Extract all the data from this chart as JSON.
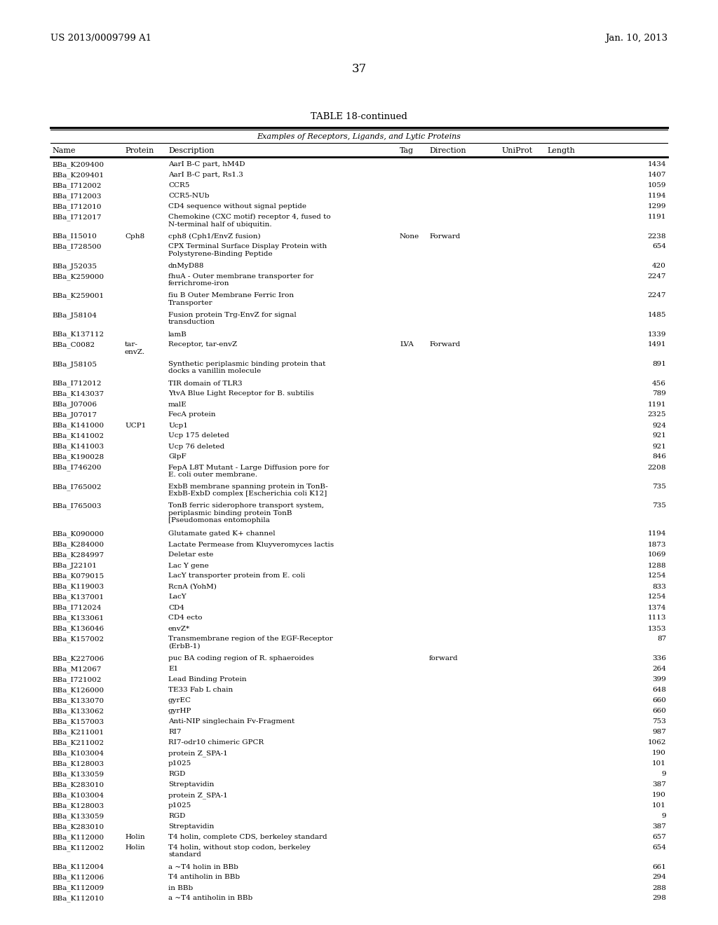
{
  "header_left": "US 2013/0009799 A1",
  "header_right": "Jan. 10, 2013",
  "page_number": "37",
  "table_title": "TABLE 18-continued",
  "table_subtitle": "Examples of Receptors, Ligands, and Lytic Proteins",
  "col_headers": [
    "Name",
    "Protein",
    "Description",
    "Tag",
    "Direction",
    "UniProt",
    "Length"
  ],
  "rows": [
    [
      "BBa_K209400",
      "",
      "AarI B-C part, hM4D",
      "",
      "",
      "",
      "1434"
    ],
    [
      "BBa_K209401",
      "",
      "AarI B-C part, Rs1.3",
      "",
      "",
      "",
      "1407"
    ],
    [
      "BBa_I712002",
      "",
      "CCR5",
      "",
      "",
      "",
      "1059"
    ],
    [
      "BBa_I712003",
      "",
      "CCR5-NUb",
      "",
      "",
      "",
      "1194"
    ],
    [
      "BBa_I712010",
      "",
      "CD4 sequence without signal peptide",
      "",
      "",
      "",
      "1299"
    ],
    [
      "BBa_I712017",
      "",
      "Chemokine (CXC motif) receptor 4, fused to\nN-terminal half of ubiquitin.",
      "",
      "",
      "",
      "1191"
    ],
    [
      "BBa_I15010",
      "Cph8",
      "cph8 (Cph1/EnvZ fusion)",
      "None",
      "Forward",
      "",
      "2238"
    ],
    [
      "BBa_I728500",
      "",
      "CPX Terminal Surface Display Protein with\nPolystyrene-Binding Peptide",
      "",
      "",
      "",
      "654"
    ],
    [
      "BBa_J52035",
      "",
      "dnMyD88",
      "",
      "",
      "",
      "420"
    ],
    [
      "BBa_K259000",
      "",
      "fhuA - Outer membrane transporter for\nferrichrome-iron",
      "",
      "",
      "",
      "2247"
    ],
    [
      "BBa_K259001",
      "",
      "fiu B Outer Membrane Ferric Iron\nTransporter",
      "",
      "",
      "",
      "2247"
    ],
    [
      "BBa_J58104",
      "",
      "Fusion protein Trg-EnvZ for signal\ntransduction",
      "",
      "",
      "",
      "1485"
    ],
    [
      "BBa_K137112",
      "",
      "lamB",
      "",
      "",
      "",
      "1339"
    ],
    [
      "BBa_C0082",
      "tar-\nenvZ.",
      "Receptor, tar-envZ",
      "LVA",
      "Forward",
      "",
      "1491"
    ],
    [
      "BBa_J58105",
      "",
      "Synthetic periplasmic binding protein that\ndocks a vanillin molecule",
      "",
      "",
      "",
      "891"
    ],
    [
      "BBa_I712012",
      "",
      "TIR domain of TLR3",
      "",
      "",
      "",
      "456"
    ],
    [
      "BBa_K143037",
      "",
      "YtvA Blue Light Receptor for B. subtilis",
      "",
      "",
      "",
      "789"
    ],
    [
      "BBa_J07006",
      "",
      "malE",
      "",
      "",
      "",
      "1191"
    ],
    [
      "BBa_J07017",
      "",
      "FecA protein",
      "",
      "",
      "",
      "2325"
    ],
    [
      "BBa_K141000",
      "UCP1",
      "Ucp1",
      "",
      "",
      "",
      "924"
    ],
    [
      "BBa_K141002",
      "",
      "Ucp 175 deleted",
      "",
      "",
      "",
      "921"
    ],
    [
      "BBa_K141003",
      "",
      "Ucp 76 deleted",
      "",
      "",
      "",
      "921"
    ],
    [
      "BBa_K190028",
      "",
      "GlpF",
      "",
      "",
      "",
      "846"
    ],
    [
      "BBa_I746200",
      "",
      "FepA L8T Mutant - Large Diffusion pore for\nE. coli outer membrane.",
      "",
      "",
      "",
      "2208"
    ],
    [
      "BBa_I765002",
      "",
      "ExbB membrane spanning protein in TonB-\nExbB-ExbD complex [Escherichia coli K12]",
      "",
      "",
      "",
      "735"
    ],
    [
      "BBa_I765003",
      "",
      "TonB ferric siderophore transport system,\nperiplasmic binding protein TonB\n[Pseudomonas entomophila",
      "",
      "",
      "",
      "735"
    ],
    [
      "BBa_K090000",
      "",
      "Glutamate gated K+ channel",
      "",
      "",
      "",
      "1194"
    ],
    [
      "BBa_K284000",
      "",
      "Lactate Permease from Kluyveromyces lactis",
      "",
      "",
      "",
      "1873"
    ],
    [
      "BBa_K284997",
      "",
      "Deletar este",
      "",
      "",
      "",
      "1069"
    ],
    [
      "BBa_J22101",
      "",
      "Lac Y gene",
      "",
      "",
      "",
      "1288"
    ],
    [
      "BBa_K079015",
      "",
      "LacY transporter protein from E. coli",
      "",
      "",
      "",
      "1254"
    ],
    [
      "BBa_K119003",
      "",
      "RcnA (YohM)",
      "",
      "",
      "",
      "833"
    ],
    [
      "BBa_K137001",
      "",
      "LacY",
      "",
      "",
      "",
      "1254"
    ],
    [
      "BBa_I712024",
      "",
      "CD4",
      "",
      "",
      "",
      "1374"
    ],
    [
      "BBa_K133061",
      "",
      "CD4 ecto",
      "",
      "",
      "",
      "1113"
    ],
    [
      "BBa_K136046",
      "",
      "envZ*",
      "",
      "",
      "",
      "1353"
    ],
    [
      "BBa_K157002",
      "",
      "Transmembrane region of the EGF-Receptor\n(ErbB-1)",
      "",
      "",
      "",
      "87"
    ],
    [
      "BBa_K227006",
      "",
      "puc BA coding region of R. sphaeroides",
      "",
      "forward",
      "",
      "336"
    ],
    [
      "BBa_M12067",
      "",
      "E1",
      "",
      "",
      "",
      "264"
    ],
    [
      "BBa_I721002",
      "",
      "Lead Binding Protein",
      "",
      "",
      "",
      "399"
    ],
    [
      "BBa_K126000",
      "",
      "TE33 Fab L chain",
      "",
      "",
      "",
      "648"
    ],
    [
      "BBa_K133070",
      "",
      "gyrEC",
      "",
      "",
      "",
      "660"
    ],
    [
      "BBa_K133062",
      "",
      "gyrHP",
      "",
      "",
      "",
      "660"
    ],
    [
      "BBa_K157003",
      "",
      "Anti-NIP singlechain Fv-Fragment",
      "",
      "",
      "",
      "753"
    ],
    [
      "BBa_K211001",
      "",
      "RI7",
      "",
      "",
      "",
      "987"
    ],
    [
      "BBa_K211002",
      "",
      "RI7-odr10 chimeric GPCR",
      "",
      "",
      "",
      "1062"
    ],
    [
      "BBa_K103004",
      "",
      "protein Z_SPA-1",
      "",
      "",
      "",
      "190"
    ],
    [
      "BBa_K128003",
      "",
      "p1025",
      "",
      "",
      "",
      "101"
    ],
    [
      "BBa_K133059",
      "",
      "RGD",
      "",
      "",
      "",
      "9"
    ],
    [
      "BBa_K283010",
      "",
      "Streptavidin",
      "",
      "",
      "",
      "387"
    ],
    [
      "BBa_K103004",
      "",
      "protein Z_SPA-1",
      "",
      "",
      "",
      "190"
    ],
    [
      "BBa_K128003",
      "",
      "p1025",
      "",
      "",
      "",
      "101"
    ],
    [
      "BBa_K133059",
      "",
      "RGD",
      "",
      "",
      "",
      "9"
    ],
    [
      "BBa_K283010",
      "",
      "Streptavidin",
      "",
      "",
      "",
      "387"
    ],
    [
      "BBa_K112000",
      "Holin",
      "T4 holin, complete CDS, berkeley standard",
      "",
      "",
      "",
      "657"
    ],
    [
      "BBa_K112002",
      "Holin",
      "T4 holin, without stop codon, berkeley\nstandard",
      "",
      "",
      "",
      "654"
    ],
    [
      "BBa_K112004",
      "",
      "a ~T4 holin in BBb",
      "",
      "",
      "",
      "661"
    ],
    [
      "BBa_K112006",
      "",
      "T4 antiholin in BBb",
      "",
      "",
      "",
      "294"
    ],
    [
      "BBa_K112009",
      "",
      "in BBb",
      "",
      "",
      "",
      "288"
    ],
    [
      "BBa_K112010",
      "",
      "a ~T4 antiholin in BBb",
      "",
      "",
      "",
      "298"
    ]
  ],
  "desc_subscript": {
    "protein Z_SPA-1": [
      "protein Z",
      "SPA-1",
      ""
    ]
  },
  "background_color": "#ffffff",
  "text_color": "#000000",
  "font_size": 7.5,
  "header_font_size": 9.5
}
